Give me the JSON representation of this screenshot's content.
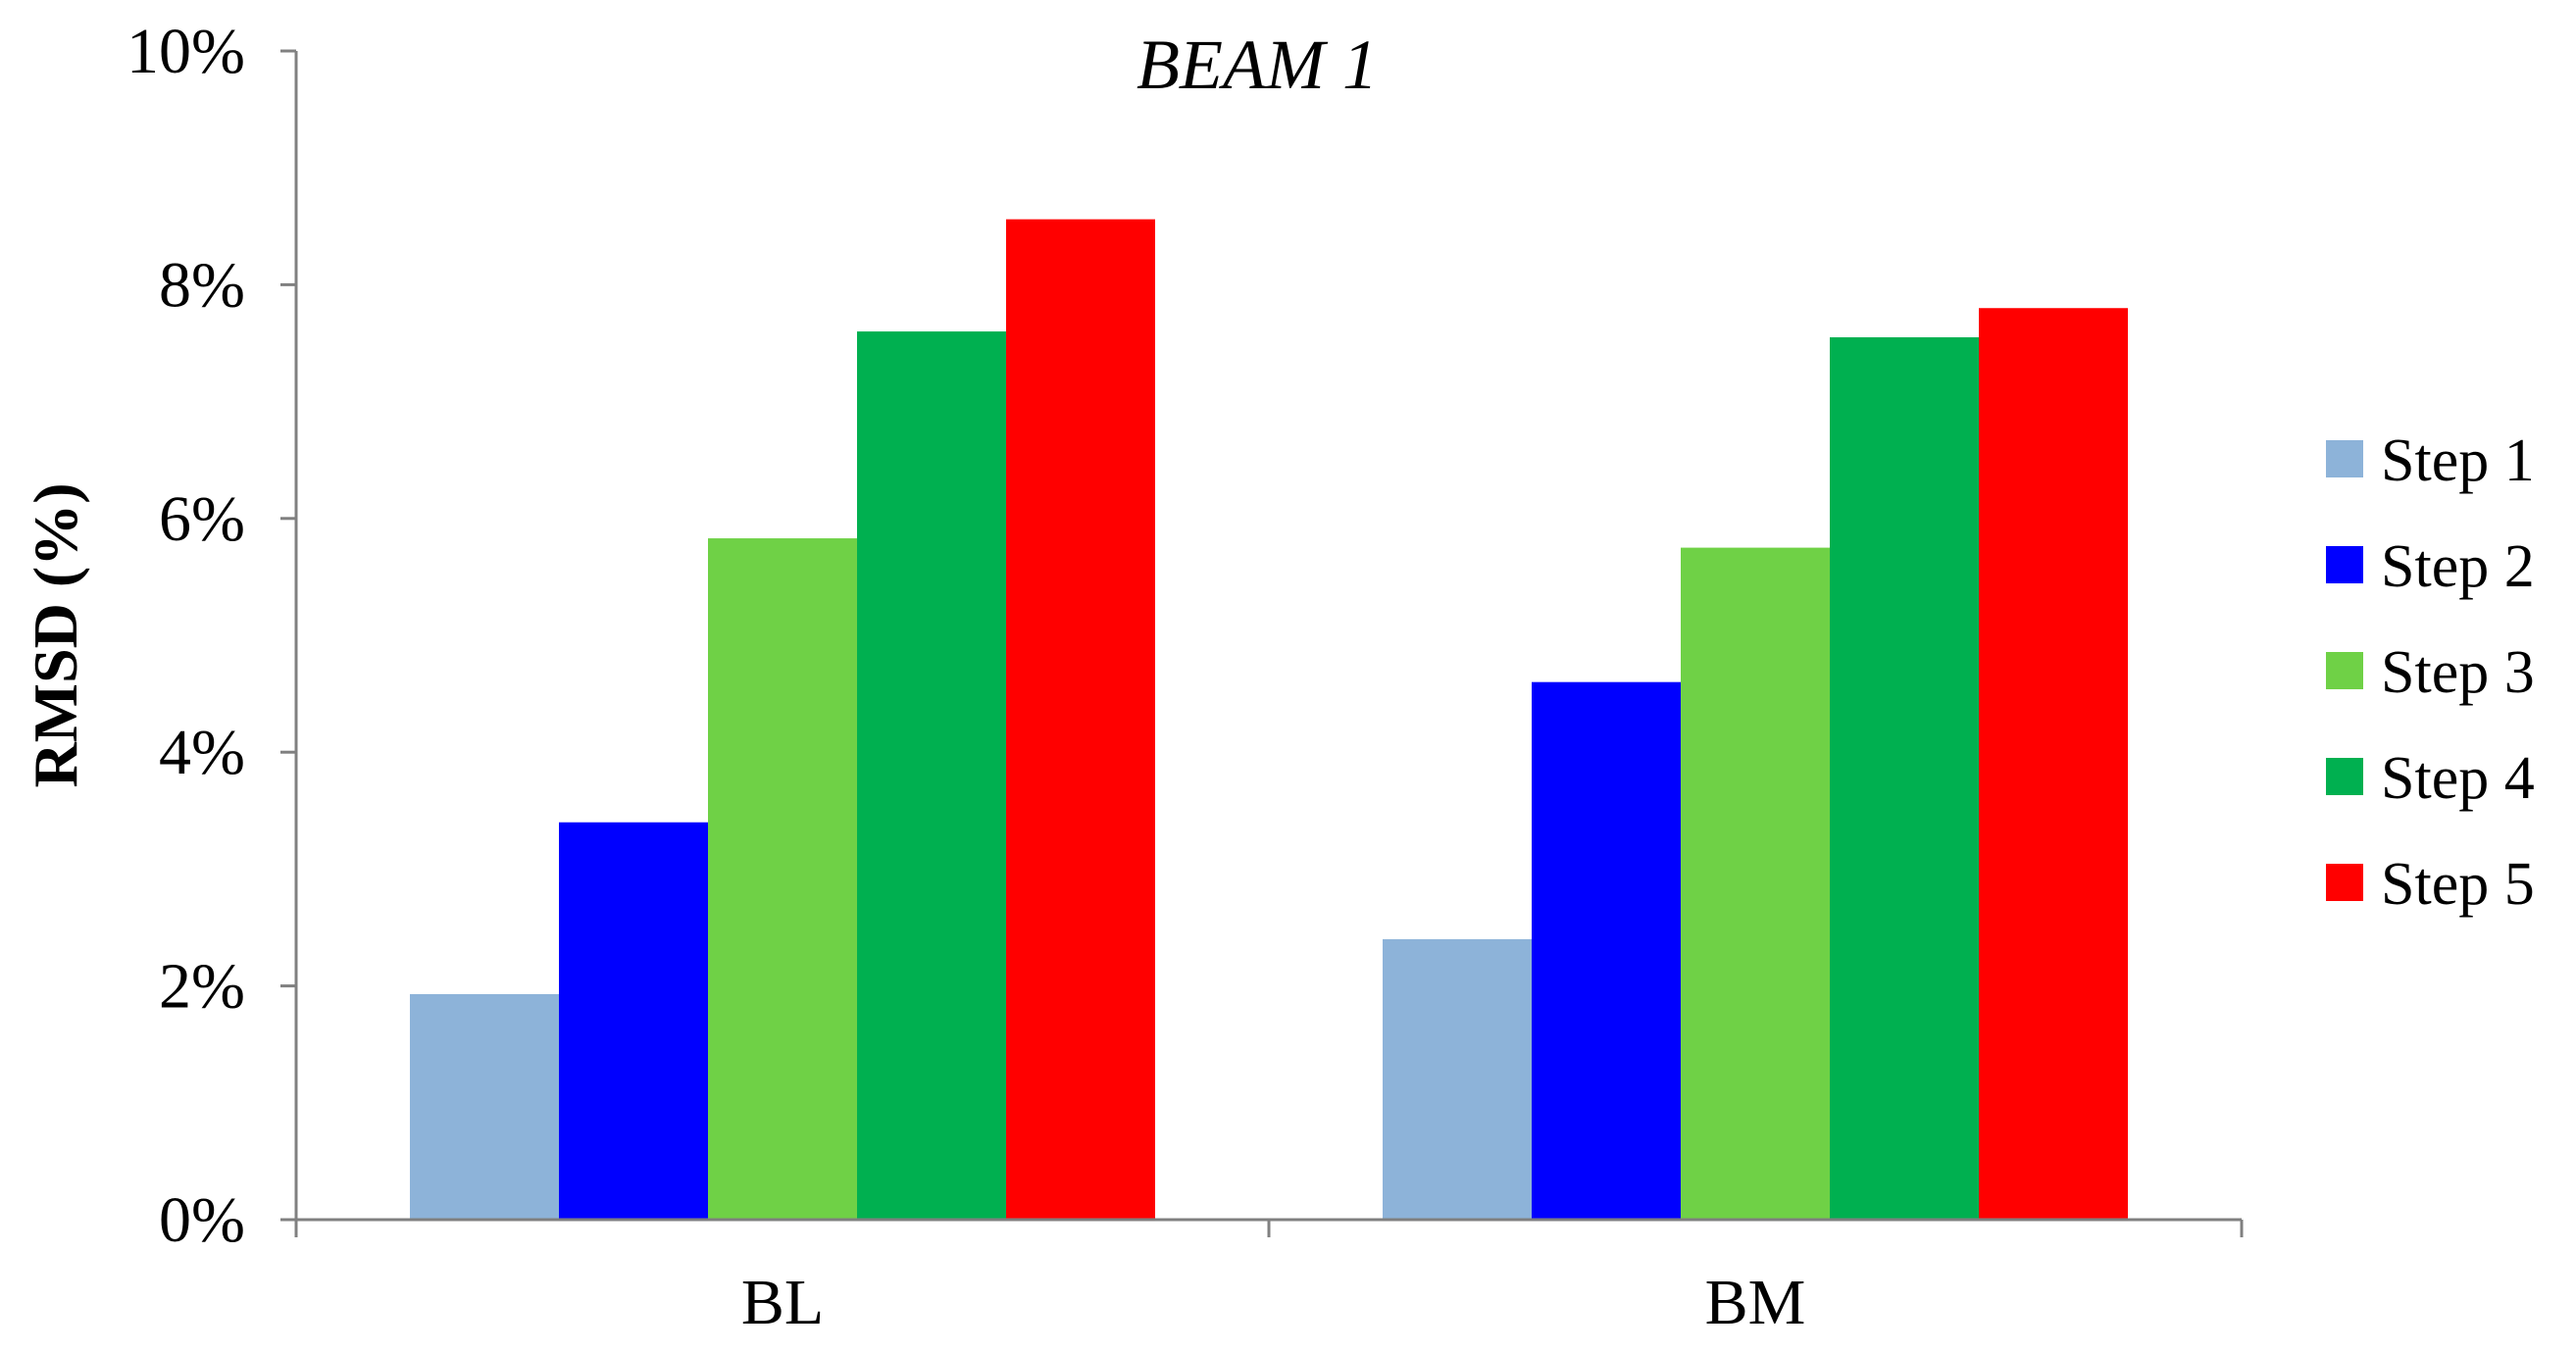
{
  "chart_data": {
    "type": "bar",
    "title": "BEAM 1",
    "xlabel": "",
    "ylabel": "RMSD (%)",
    "ylim": [
      0,
      10
    ],
    "y_ticks": [
      "0%",
      "2%",
      "4%",
      "6%",
      "8%",
      "10%"
    ],
    "y_tick_values": [
      0,
      2,
      4,
      6,
      8,
      10
    ],
    "categories": [
      "BL",
      "BM"
    ],
    "grid": false,
    "legend_position": "right",
    "series": [
      {
        "name": "Step 1",
        "color": "#8DB3D9",
        "values": [
          1.93,
          2.4
        ]
      },
      {
        "name": "Step 2",
        "color": "#0000FF",
        "values": [
          3.4,
          4.6
        ]
      },
      {
        "name": "Step 3",
        "color": "#6FD146",
        "values": [
          5.83,
          5.75
        ]
      },
      {
        "name": "Step 4",
        "color": "#00B050",
        "values": [
          7.6,
          7.55
        ]
      },
      {
        "name": "Step 5",
        "color": "#FF0000",
        "values": [
          8.56,
          7.8
        ]
      }
    ]
  }
}
